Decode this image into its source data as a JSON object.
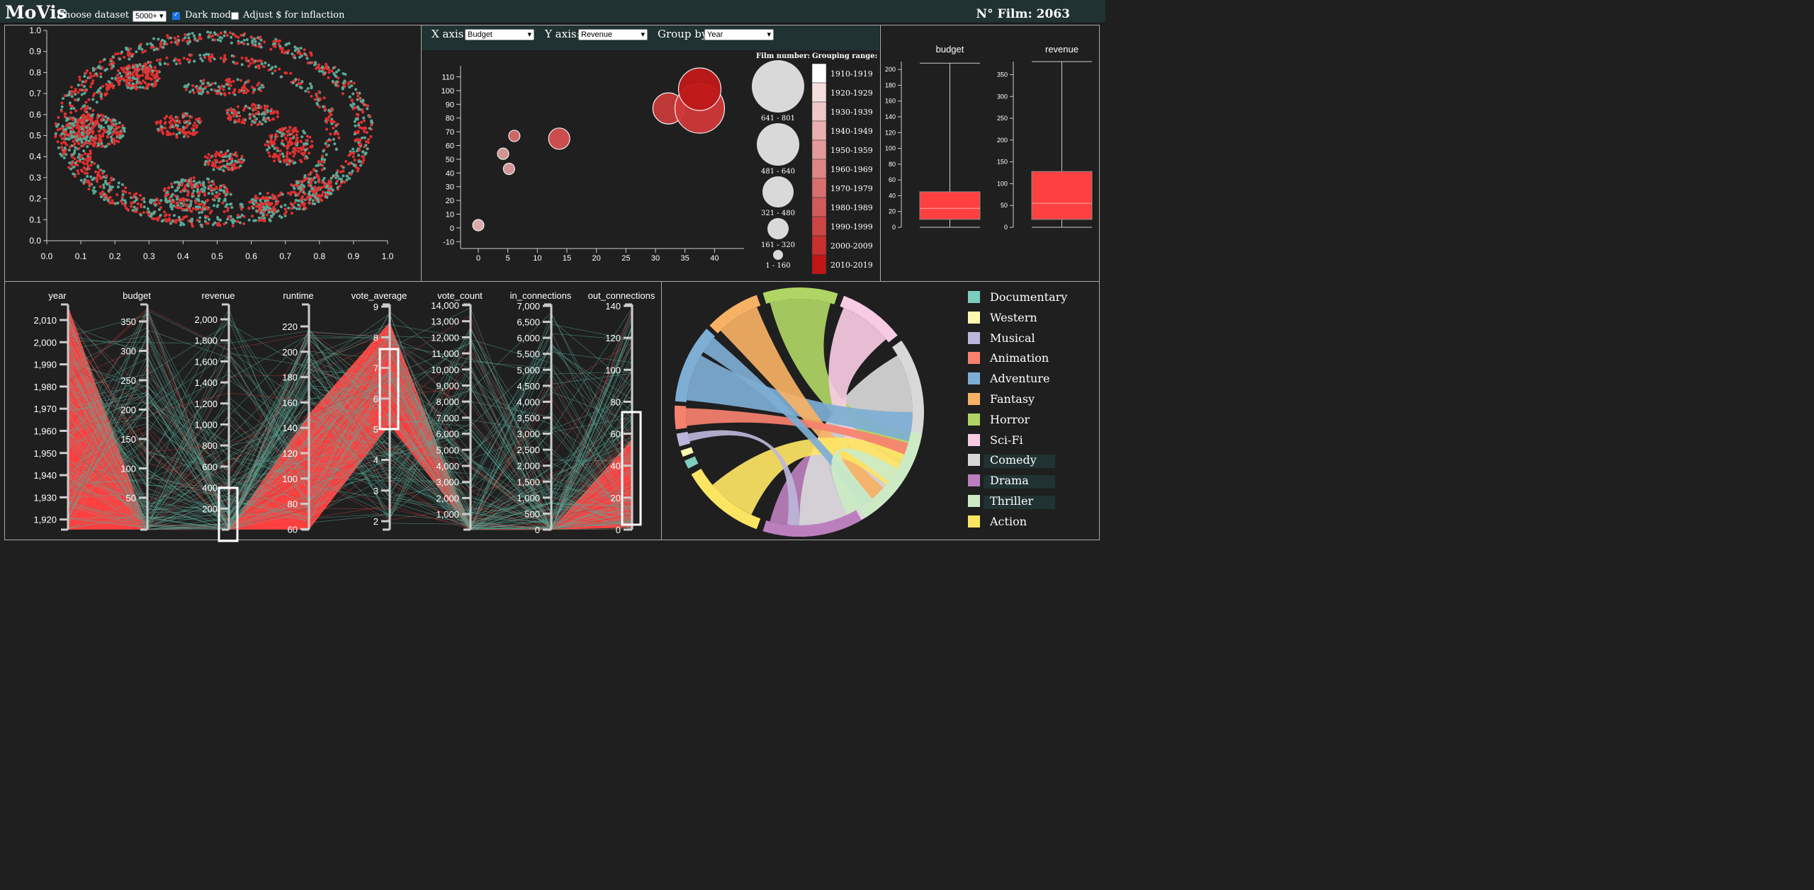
{
  "header": {
    "app_title": "MoVis",
    "dataset_size_label": "Choose dataset size:",
    "dataset_size_value": "5000+",
    "dark_mode_label": "Dark mode",
    "dark_mode_checked": true,
    "inflation_label": "Adjust $ for inflaction",
    "inflation_checked": false,
    "film_count_label": "N° Film: 2063"
  },
  "bubble_controls": {
    "x_axis_label": "X axis:",
    "x_axis_value": "Budget",
    "y_axis_label": "Y axis:",
    "y_axis_value": "Revenue",
    "group_by_label": "Group by:",
    "group_by_value": "Year"
  },
  "colors": {
    "accent_red": "#ff4040",
    "accent_teal": "#5aa897",
    "bg": "#1f1f1f",
    "header_bg": "#203231"
  },
  "chart_data": [
    {
      "type": "scatter",
      "description_colors": [
        "#e03030",
        "#5aa897"
      ],
      "xlim": [
        0,
        1
      ],
      "ylim": [
        0,
        1
      ],
      "x_ticks": [
        "0.0",
        "0.1",
        "0.2",
        "0.3",
        "0.4",
        "0.5",
        "0.6",
        "0.7",
        "0.8",
        "0.9",
        "1.0"
      ],
      "y_ticks": [
        "0.0",
        "0.1",
        "0.2",
        "0.3",
        "0.4",
        "0.5",
        "0.6",
        "0.7",
        "0.8",
        "0.9",
        "1.0"
      ]
    },
    {
      "type": "scatter",
      "x_ticks": [
        "0",
        "5",
        "10",
        "15",
        "20",
        "25",
        "30",
        "35",
        "40"
      ],
      "y_ticks": [
        "-10",
        "0",
        "10",
        "20",
        "30",
        "40",
        "50",
        "60",
        "70",
        "80",
        "90",
        "100",
        "110"
      ],
      "xlim": [
        -3,
        45
      ],
      "ylim": [
        -15,
        118
      ],
      "points": [
        {
          "x": 0,
          "y": 2,
          "r": 8,
          "color": "#e6b3b3"
        },
        {
          "x": 4.2,
          "y": 54,
          "r": 8,
          "color": "#df9a9a"
        },
        {
          "x": 5.2,
          "y": 43,
          "r": 8,
          "color": "#df9a9a"
        },
        {
          "x": 6.1,
          "y": 67,
          "r": 8,
          "color": "#d86a6a"
        },
        {
          "x": 13.7,
          "y": 65,
          "r": 15,
          "color": "#d65050"
        },
        {
          "x": 32.2,
          "y": 87,
          "r": 22,
          "color": "#c83a3a"
        },
        {
          "x": 37.5,
          "y": 87,
          "r": 35,
          "color": "#d03838"
        },
        {
          "x": 37.5,
          "y": 101,
          "r": 30,
          "color": "#c01818"
        }
      ],
      "size_legend_title": "Film number:",
      "size_legend": [
        "641 - 801",
        "481 - 640",
        "321 - 480",
        "161 - 320",
        "1 - 160"
      ],
      "color_legend_title": "Grouping range:",
      "color_legend": [
        "1910-1919",
        "1920-1929",
        "1930-1939",
        "1940-1949",
        "1950-1959",
        "1960-1969",
        "1970-1979",
        "1980-1989",
        "1990-1999",
        "2000-2009",
        "2010-2019"
      ],
      "color_legend_colors": [
        "#ffffff",
        "#f5dede",
        "#efc7c7",
        "#e8b0b0",
        "#e39a9a",
        "#de8585",
        "#d86f6f",
        "#d35a5a",
        "#cd4545",
        "#c83030",
        "#c01515"
      ]
    },
    {
      "type": "box",
      "boxes": [
        {
          "name": "budget",
          "ticks": [
            "0",
            "20",
            "40",
            "60",
            "80",
            "100",
            "120",
            "140",
            "160",
            "180",
            "200"
          ],
          "min": 0,
          "q1": 10,
          "median": 24,
          "q3": 45,
          "max": 208,
          "ylim": [
            0,
            210
          ]
        },
        {
          "name": "revenue",
          "ticks": [
            "0",
            "50",
            "100",
            "150",
            "200",
            "250",
            "300",
            "350"
          ],
          "min": 0,
          "q1": 18,
          "median": 55,
          "q3": 128,
          "max": 380,
          "ylim": [
            0,
            380
          ]
        }
      ]
    },
    {
      "type": "parallel_coordinates",
      "axes": [
        {
          "name": "year",
          "ticks": [
            "2,010",
            "2,000",
            "1,990",
            "1,980",
            "1,970",
            "1,960",
            "1,950",
            "1,940",
            "1,930",
            "1,920"
          ]
        },
        {
          "name": "budget",
          "ticks": [
            "350",
            "300",
            "250",
            "200",
            "150",
            "100",
            "50"
          ]
        },
        {
          "name": "revenue",
          "ticks": [
            "2,000",
            "1,800",
            "1,600",
            "1,400",
            "1,200",
            "1,000",
            "800",
            "600",
            "400",
            "200"
          ]
        },
        {
          "name": "runtime",
          "ticks": [
            "220",
            "200",
            "180",
            "160",
            "140",
            "120",
            "100",
            "80",
            "60"
          ]
        },
        {
          "name": "vote_average",
          "ticks": [
            "9",
            "8",
            "7",
            "6",
            "5",
            "4",
            "3",
            "2"
          ]
        },
        {
          "name": "vote_count",
          "ticks": [
            "14,000",
            "13,000",
            "12,000",
            "11,000",
            "10,000",
            "9,000",
            "8,000",
            "7,000",
            "6,000",
            "5,000",
            "4,000",
            "3,000",
            "2,000",
            "1,000"
          ]
        },
        {
          "name": "in_connections",
          "ticks": [
            "7,000",
            "6,500",
            "6,000",
            "5,500",
            "5,000",
            "4,500",
            "4,000",
            "3,500",
            "3,000",
            "2,500",
            "2,000",
            "1,500",
            "1,000",
            "500",
            "0"
          ]
        },
        {
          "name": "out_connections",
          "ticks": [
            "140",
            "120",
            "100",
            "80",
            "60",
            "40",
            "20",
            "0"
          ]
        }
      ],
      "brushes": [
        {
          "axis": "revenue",
          "range": [
            -150,
            400
          ]
        },
        {
          "axis": "vote_average",
          "range": [
            5,
            7.3
          ]
        },
        {
          "axis": "out_connections",
          "range": [
            2,
            80
          ]
        }
      ]
    },
    {
      "type": "chord",
      "genres": [
        {
          "name": "Documentary",
          "color": "#7dcdbf"
        },
        {
          "name": "Western",
          "color": "#fbfab0"
        },
        {
          "name": "Musical",
          "color": "#bcb6da"
        },
        {
          "name": "Animation",
          "color": "#f7816f"
        },
        {
          "name": "Adventure",
          "color": "#7eaed4"
        },
        {
          "name": "Fantasy",
          "color": "#f7b165"
        },
        {
          "name": "Horror",
          "color": "#b0d564"
        },
        {
          "name": "Sci-Fi",
          "color": "#f7cbe3"
        },
        {
          "name": "Comedy",
          "color": "#d8d8d8"
        },
        {
          "name": "Drama",
          "color": "#bc7fbd"
        },
        {
          "name": "Thriller",
          "color": "#ccebc5"
        },
        {
          "name": "Action",
          "color": "#fde564"
        }
      ],
      "highlighted": [
        "Comedy",
        "Drama",
        "Thriller"
      ]
    }
  ]
}
